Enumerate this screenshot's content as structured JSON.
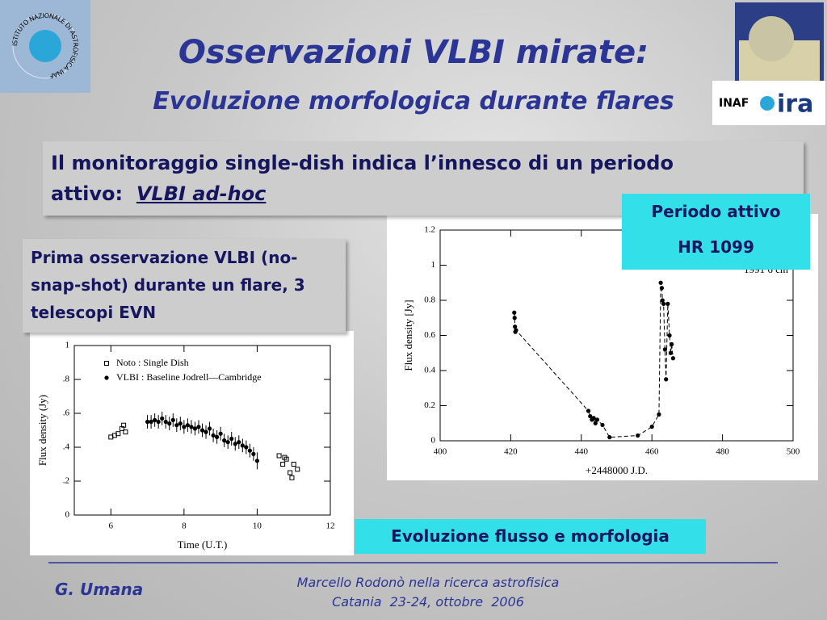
{
  "header": {
    "title": "Osservazioni VLBI mirate:",
    "subtitle": "Evoluzione morfologica durante flares"
  },
  "logos": {
    "ring": "ISTITUTO NAZIONALE DI ASTROFISICA",
    "ring_short": "INAF",
    "inaf": "INAF",
    "ira": "ira"
  },
  "intro": {
    "text": "Il monitoraggio single-dish indica l’innesco di un periodo attivo:",
    "highlight": "VLBI ad-hoc"
  },
  "left_note": "Prima osservazione VLBI (no-snap-shot) durante un flare, 3 telescopi EVN",
  "active_period": {
    "label": "Periodo attivo",
    "star": "HR 1099"
  },
  "caption": "Evoluzione flusso e morfologia",
  "footer": {
    "author": "G. Umana",
    "event": "Marcello Rodonò nella ricerca astrofisica",
    "place_date": "Catania  23-24, ottobre  2006"
  },
  "chart_data": [
    {
      "type": "scatter",
      "x_label": "Time (U.T.)",
      "y_label": "Flux density (Jy)",
      "xlim": [
        5,
        12
      ],
      "xticks": [
        6,
        8,
        10,
        12
      ],
      "ylim": [
        0,
        1
      ],
      "yticks": [
        0,
        {
          "value": 0.2,
          "label": ".2"
        },
        {
          "value": 0.4,
          "label": ".4"
        },
        {
          "value": 0.6,
          "label": ".6"
        },
        {
          "value": 0.8,
          "label": ".8"
        },
        1
      ],
      "legend": "top-left",
      "series": [
        {
          "name": "Noto : Single Dish",
          "color": "#000000",
          "marker": "square-open",
          "x": [
            6.0,
            6.1,
            6.2,
            6.3,
            6.35,
            6.4,
            10.6,
            10.7,
            10.75,
            10.8,
            10.9,
            10.95,
            11.0,
            11.1
          ],
          "values": [
            0.46,
            0.47,
            0.48,
            0.51,
            0.53,
            0.49,
            0.35,
            0.3,
            0.34,
            0.33,
            0.25,
            0.22,
            0.3,
            0.27
          ]
        },
        {
          "name": "VLBI : Baseline Jodrell—Cambridge",
          "color": "#000000",
          "marker": "circle",
          "x": [
            7.0,
            7.1,
            7.2,
            7.3,
            7.4,
            7.5,
            7.6,
            7.7,
            7.8,
            7.9,
            8.0,
            8.1,
            8.2,
            8.3,
            8.4,
            8.5,
            8.6,
            8.7,
            8.8,
            8.9,
            9.0,
            9.1,
            9.2,
            9.3,
            9.4,
            9.5,
            9.6,
            9.7,
            9.8,
            9.9,
            10.0
          ],
          "values": [
            0.55,
            0.55,
            0.56,
            0.55,
            0.57,
            0.55,
            0.54,
            0.56,
            0.53,
            0.54,
            0.52,
            0.53,
            0.52,
            0.51,
            0.52,
            0.5,
            0.49,
            0.51,
            0.47,
            0.46,
            0.48,
            0.44,
            0.43,
            0.45,
            0.42,
            0.43,
            0.41,
            0.4,
            0.38,
            0.36,
            0.32
          ],
          "errors": [
            0.04,
            0.04,
            0.04,
            0.04,
            0.04,
            0.04,
            0.04,
            0.04,
            0.04,
            0.04,
            0.04,
            0.04,
            0.04,
            0.04,
            0.04,
            0.04,
            0.04,
            0.04,
            0.04,
            0.04,
            0.04,
            0.04,
            0.04,
            0.04,
            0.04,
            0.04,
            0.04,
            0.04,
            0.04,
            0.04,
            0.05
          ]
        }
      ]
    },
    {
      "type": "scatter",
      "x_label": "+2448000 J.D.",
      "y_label": "Flux density [Jy]",
      "annotation": "1991 6 cm",
      "xlim": [
        400,
        500
      ],
      "xticks": [
        400,
        420,
        440,
        460,
        480,
        500
      ],
      "ylim": [
        0,
        1.2
      ],
      "yticks": [
        0,
        0.2,
        0.4,
        0.6,
        0.8,
        1,
        1.2
      ],
      "color": "#000000",
      "line_style": "dashed",
      "x": [
        421,
        421.1,
        421.2,
        421.3,
        421.5,
        442,
        442.5,
        443,
        443.5,
        444,
        444.5,
        446,
        448,
        456,
        460,
        462,
        462.5,
        462.8,
        463,
        463.3,
        463.7,
        464,
        464.5,
        465,
        465.3,
        465.6,
        466
      ],
      "values": [
        0.73,
        0.7,
        0.65,
        0.62,
        0.63,
        0.17,
        0.14,
        0.12,
        0.13,
        0.1,
        0.12,
        0.09,
        0.02,
        0.03,
        0.08,
        0.15,
        0.9,
        0.87,
        0.8,
        0.78,
        0.52,
        0.35,
        0.78,
        0.6,
        0.5,
        0.55,
        0.47
      ]
    }
  ]
}
